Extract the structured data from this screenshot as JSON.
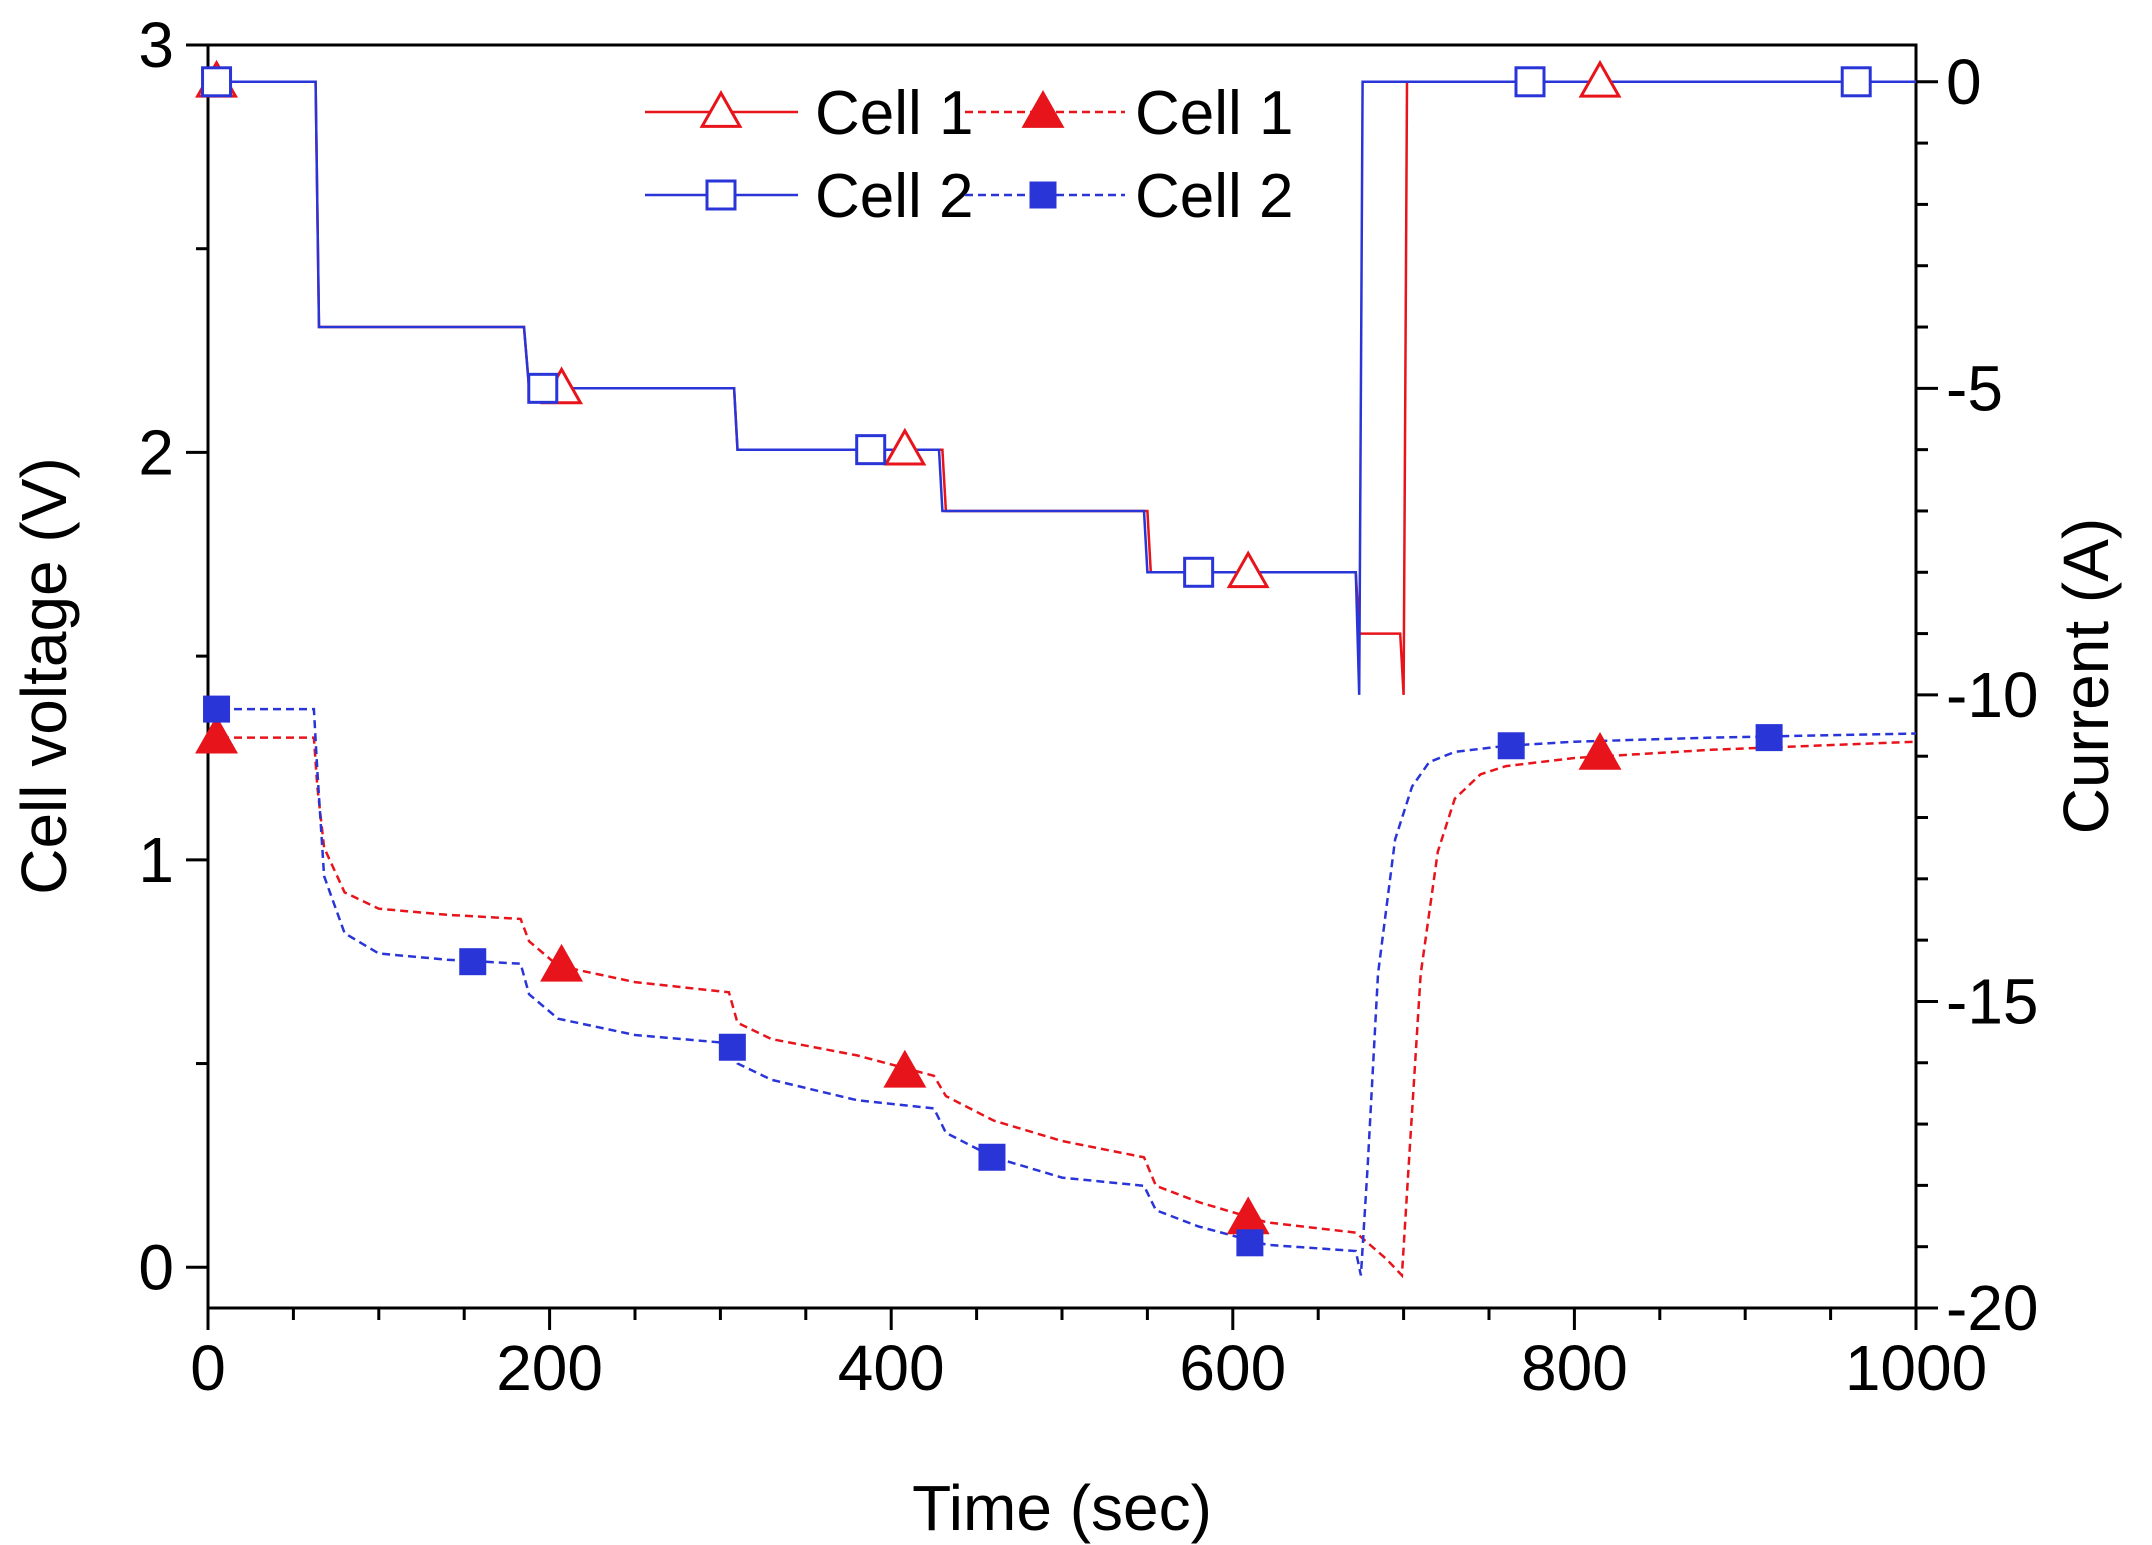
{
  "chart_data": {
    "type": "line",
    "title": "",
    "xlabel": "Time (sec)",
    "ylabel_left": "Cell voltage (V)",
    "ylabel_right": "Current (A)",
    "xlim": [
      0,
      1000
    ],
    "ylim_left": [
      -0.1,
      3.0
    ],
    "ylim_right": [
      -20.0,
      0.6
    ],
    "x_ticks": [
      0,
      200,
      400,
      600,
      800,
      1000
    ],
    "x_tick_labels": [
      "0",
      "200",
      "400",
      "600",
      "800",
      "1000"
    ],
    "y_left_ticks": [
      0,
      1,
      2,
      3
    ],
    "y_left_tick_labels": [
      "0",
      "1",
      "2",
      "3"
    ],
    "y_right_ticks": [
      0,
      -5,
      -10,
      -15,
      -20
    ],
    "y_right_tick_labels": [
      "0",
      "-5",
      "-10",
      "-15",
      "-20"
    ],
    "grid": false,
    "legend_position": "top-center",
    "legend": [
      {
        "label": "Cell 1",
        "series": "current_cell1"
      },
      {
        "label": "Cell 1",
        "series": "voltage_cell1"
      },
      {
        "label": "Cell 2",
        "series": "current_cell2"
      },
      {
        "label": "Cell 2",
        "series": "voltage_cell2"
      }
    ],
    "series": [
      {
        "id": "current_cell1",
        "name": "Cell 1",
        "axis": "right",
        "color": "#e8141b",
        "line": "solid",
        "marker": "triangle-open",
        "x": [
          0,
          63,
          65,
          185,
          188,
          308,
          310,
          430,
          432,
          550,
          552,
          672,
          674,
          698,
          700,
          702,
          1000
        ],
        "y": [
          0,
          0,
          -4.0,
          -4.0,
          -5.0,
          -5.0,
          -6.0,
          -6.0,
          -7.0,
          -7.0,
          -8.0,
          -8.0,
          -9.0,
          -9.0,
          -10.0,
          0,
          0
        ],
        "marker_x": [
          5,
          207,
          408,
          609,
          815
        ],
        "marker_y": [
          0,
          -5.0,
          -6.0,
          -8.0,
          0
        ]
      },
      {
        "id": "current_cell2",
        "name": "Cell 2",
        "axis": "right",
        "color": "#2a35d8",
        "line": "solid",
        "marker": "square-open",
        "x": [
          0,
          63,
          65,
          185,
          188,
          308,
          310,
          428,
          430,
          548,
          550,
          672,
          674,
          676,
          1000
        ],
        "y": [
          0,
          0,
          -4.0,
          -4.0,
          -5.0,
          -5.0,
          -6.0,
          -6.0,
          -7.0,
          -7.0,
          -8.0,
          -8.0,
          -10.0,
          0,
          0
        ],
        "marker_x": [
          5,
          196,
          388,
          580,
          774,
          965
        ],
        "marker_y": [
          0,
          -5.0,
          -6.0,
          -8.0,
          0,
          0
        ]
      },
      {
        "id": "voltage_cell1",
        "name": "Cell 1",
        "axis": "left",
        "color": "#e8141b",
        "line": "dashed",
        "marker": "triangle-filled",
        "x": [
          0,
          62,
          64,
          68,
          80,
          100,
          140,
          183,
          188,
          205,
          250,
          305,
          310,
          330,
          380,
          425,
          432,
          460,
          500,
          548,
          555,
          580,
          620,
          672,
          690,
          699,
          703,
          710,
          720,
          730,
          745,
          760,
          800,
          880,
          1000
        ],
        "y": [
          1.3,
          1.3,
          1.18,
          1.03,
          0.92,
          0.88,
          0.865,
          0.855,
          0.8,
          0.74,
          0.7,
          0.675,
          0.6,
          0.56,
          0.52,
          0.47,
          0.42,
          0.36,
          0.31,
          0.27,
          0.2,
          0.16,
          0.11,
          0.085,
          0.02,
          -0.02,
          0.25,
          0.72,
          1.02,
          1.15,
          1.21,
          1.23,
          1.25,
          1.27,
          1.29
        ],
        "marker_x": [
          5,
          207,
          408,
          609,
          815
        ],
        "marker_y": [
          1.3,
          0.74,
          0.48,
          0.12,
          1.26
        ]
      },
      {
        "id": "voltage_cell2",
        "name": "Cell 2",
        "axis": "left",
        "color": "#2a35d8",
        "line": "dashed",
        "marker": "square-filled",
        "x": [
          0,
          62,
          64,
          68,
          80,
          100,
          140,
          183,
          188,
          205,
          250,
          305,
          310,
          330,
          380,
          425,
          432,
          460,
          500,
          548,
          555,
          580,
          620,
          672,
          675,
          679,
          685,
          695,
          705,
          715,
          730,
          760,
          800,
          880,
          1000
        ],
        "y": [
          1.37,
          1.37,
          1.22,
          0.96,
          0.82,
          0.77,
          0.755,
          0.745,
          0.67,
          0.61,
          0.57,
          0.55,
          0.5,
          0.46,
          0.41,
          0.39,
          0.33,
          0.27,
          0.22,
          0.2,
          0.14,
          0.1,
          0.055,
          0.04,
          -0.02,
          0.25,
          0.72,
          1.05,
          1.18,
          1.24,
          1.265,
          1.28,
          1.29,
          1.3,
          1.31
        ],
        "marker_x": [
          5,
          155,
          307,
          459,
          610,
          763,
          914
        ],
        "marker_y": [
          1.37,
          0.75,
          0.54,
          0.27,
          0.06,
          1.28,
          1.3
        ]
      }
    ]
  }
}
